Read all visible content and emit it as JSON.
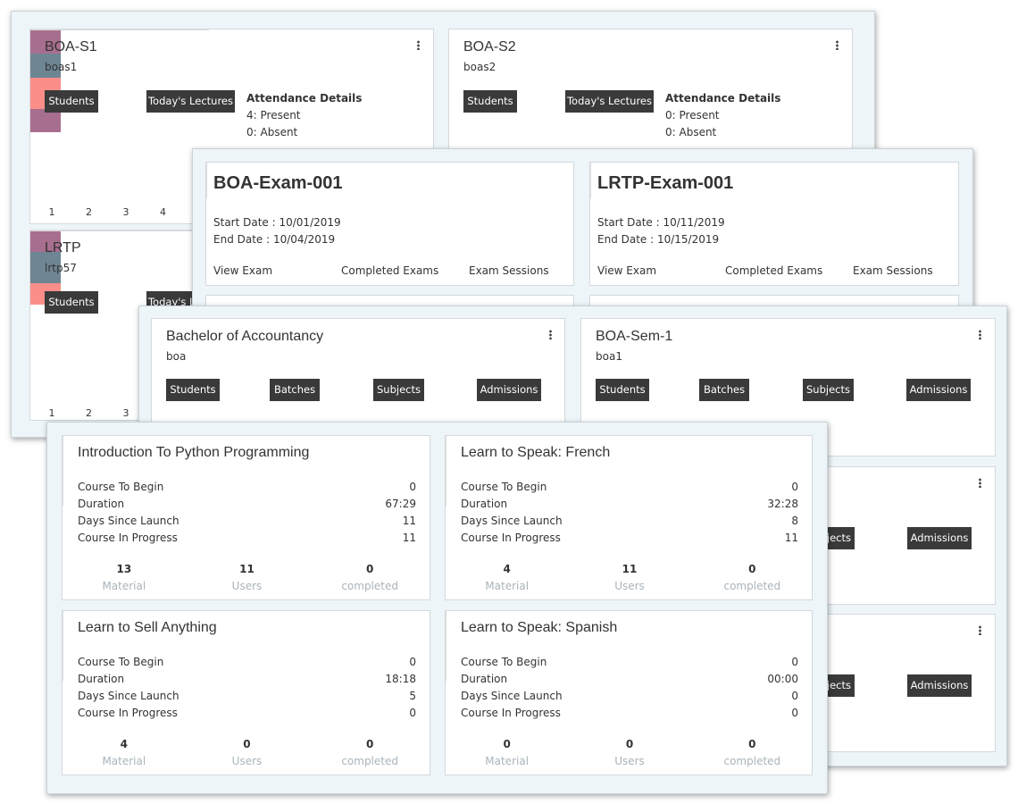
{
  "batches": [
    {
      "title": "BOA-S1",
      "code": "boas1",
      "buttons": [
        "Students",
        "Today's Lectures"
      ],
      "attendance": {
        "heading": "Attendance Details",
        "lines": [
          "4: Present",
          "0: Absent"
        ]
      },
      "bars": {
        "labels": [
          "1",
          "2",
          "3",
          "4"
        ],
        "values": [
          3,
          3,
          4,
          3
        ],
        "colors": [
          "#a86e8f",
          "#6e8593",
          "#fb8e89",
          "#a86e8f"
        ]
      }
    },
    {
      "title": "BOA-S2",
      "code": "boas2",
      "buttons": [
        "Students",
        "Today's Lectures"
      ],
      "attendance": {
        "heading": "Attendance Details",
        "lines": [
          "0: Present",
          "0: Absent"
        ]
      }
    },
    {
      "title": "LRTP",
      "code": "lrtp57",
      "buttons": [
        "Students",
        "Today's Lectures"
      ],
      "bars": {
        "labels": [
          "1",
          "2",
          "3"
        ],
        "values": [
          2,
          3,
          2
        ],
        "colors": [
          "#a86e8f",
          "#6e8593",
          "#fb8e89"
        ]
      }
    }
  ],
  "exams": [
    {
      "title": "BOA-Exam-001",
      "start": "Start Date : 10/01/2019",
      "end": "End Date : 10/04/2019",
      "links": [
        "View Exam",
        "Completed Exams",
        "Exam Sessions"
      ]
    },
    {
      "title": "LRTP-Exam-001",
      "start": "Start Date : 10/11/2019",
      "end": "End Date : 10/15/2019",
      "links": [
        "View Exam",
        "Completed Exams",
        "Exam Sessions"
      ]
    }
  ],
  "programs": [
    {
      "title": "Bachelor of Accountancy",
      "code": "boa",
      "buttons": [
        "Students",
        "Batches",
        "Subjects",
        "Admissions"
      ]
    },
    {
      "title": "BOA-Sem-1",
      "code": "boa1",
      "buttons": [
        "Students",
        "Batches",
        "Subjects",
        "Admissions"
      ]
    },
    {
      "buttons": [
        "Subjects",
        "Admissions"
      ]
    },
    {
      "buttons": [
        "Subjects",
        "Admissions"
      ]
    }
  ],
  "courses": [
    {
      "title": "Introduction To Python Programming",
      "stats": [
        {
          "label": "Course To Begin",
          "value": 0
        },
        {
          "label": "Duration",
          "value": "67:29"
        },
        {
          "label": "Days Since Launch",
          "value": 11
        },
        {
          "label": "Course In Progress",
          "value": 11
        }
      ],
      "footer": [
        {
          "value": 13,
          "label": "Material"
        },
        {
          "value": 11,
          "label": "Users"
        },
        {
          "value": 0,
          "label": "completed"
        }
      ]
    },
    {
      "title": "Learn to Speak: French",
      "stats": [
        {
          "label": "Course To Begin",
          "value": 0
        },
        {
          "label": "Duration",
          "value": "32:28"
        },
        {
          "label": "Days Since Launch",
          "value": 8
        },
        {
          "label": "Course In Progress",
          "value": 11
        }
      ],
      "footer": [
        {
          "value": 4,
          "label": "Material"
        },
        {
          "value": 11,
          "label": "Users"
        },
        {
          "value": 0,
          "label": "completed"
        }
      ]
    },
    {
      "title": "Learn to Sell Anything",
      "stats": [
        {
          "label": "Course To Begin",
          "value": 0
        },
        {
          "label": "Duration",
          "value": "18:18"
        },
        {
          "label": "Days Since Launch",
          "value": 5
        },
        {
          "label": "Course In Progress",
          "value": 0
        }
      ],
      "footer": [
        {
          "value": 4,
          "label": "Material"
        },
        {
          "value": 0,
          "label": "Users"
        },
        {
          "value": 0,
          "label": "completed"
        }
      ]
    },
    {
      "title": "Learn to Speak: Spanish",
      "stats": [
        {
          "label": "Course To Begin",
          "value": 0
        },
        {
          "label": "Duration",
          "value": "00:00"
        },
        {
          "label": "Days Since Launch",
          "value": 0
        },
        {
          "label": "Course In Progress",
          "value": 0
        }
      ],
      "footer": [
        {
          "value": 0,
          "label": "Material"
        },
        {
          "value": 0,
          "label": "Users"
        },
        {
          "value": 0,
          "label": "completed"
        }
      ]
    }
  ]
}
